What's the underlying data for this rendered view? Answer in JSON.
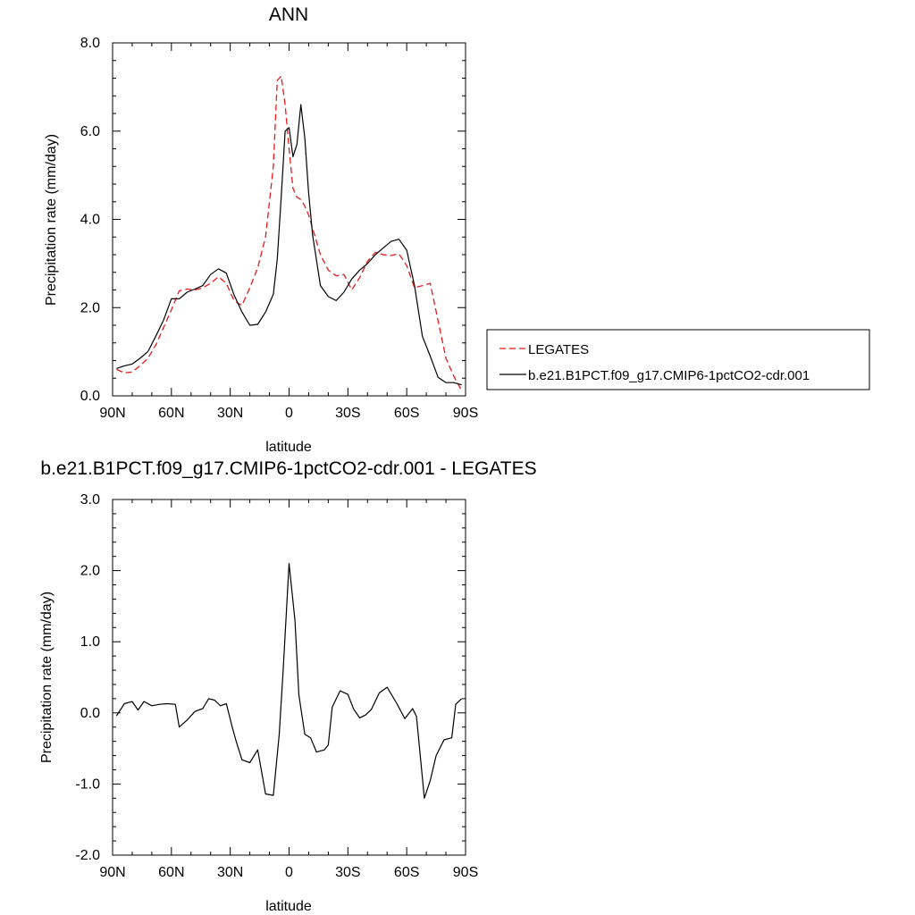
{
  "chart_data": [
    {
      "type": "line",
      "title": "ANN",
      "xlabel": "latitude",
      "ylabel": "Precipitation rate (mm/day)",
      "xlim": [
        90,
        -90
      ],
      "ylim": [
        0,
        8
      ],
      "xticks": [
        90,
        60,
        30,
        0,
        -30,
        -60,
        -90
      ],
      "xtick_labels": [
        "90N",
        "60N",
        "30N",
        "0",
        "30S",
        "60S",
        "90S"
      ],
      "yticks": [
        0,
        2,
        4,
        6,
        8
      ],
      "ytick_labels": [
        "0.0",
        "2.0",
        "4.0",
        "6.0",
        "8.0"
      ],
      "grid": false,
      "legend": {
        "placement": "right",
        "entries": [
          {
            "label": "LEGATES",
            "color": "#e41a1c",
            "dash": "dashed"
          },
          {
            "label": "b.e21.B1PCT.f09_g17.CMIP6-1pctCO2-cdr.001",
            "color": "#000000",
            "dash": "solid"
          }
        ]
      },
      "series": [
        {
          "name": "LEGATES",
          "color": "#e41a1c",
          "dash": "dashed",
          "x": [
            88,
            84,
            80,
            76,
            72,
            68,
            64,
            60,
            56,
            52,
            48,
            44,
            40,
            36,
            32,
            28,
            24,
            20,
            16,
            12,
            8,
            6,
            4,
            2,
            0,
            -2,
            -4,
            -6,
            -8,
            -10,
            -12,
            -16,
            -20,
            -24,
            -28,
            -32,
            -36,
            -40,
            -44,
            -48,
            -52,
            -56,
            -60,
            -64,
            -68,
            -72,
            -76,
            -80,
            -84,
            -88
          ],
          "y": [
            0.6,
            0.52,
            0.54,
            0.68,
            0.85,
            1.15,
            1.55,
            1.95,
            2.38,
            2.42,
            2.4,
            2.45,
            2.55,
            2.7,
            2.55,
            2.15,
            2.05,
            2.45,
            2.9,
            3.6,
            5.2,
            7.15,
            7.25,
            6.6,
            5.6,
            4.7,
            4.5,
            4.45,
            4.3,
            4.1,
            3.8,
            3.2,
            2.85,
            2.72,
            2.75,
            2.4,
            2.68,
            3.05,
            3.25,
            3.2,
            3.18,
            3.22,
            2.95,
            2.45,
            2.5,
            2.55,
            1.7,
            0.85,
            0.45,
            0.12
          ]
        },
        {
          "name": "b.e21.B1PCT.f09_g17.CMIP6-1pctCO2-cdr.001",
          "color": "#000000",
          "dash": "solid",
          "x": [
            88,
            84,
            80,
            76,
            72,
            68,
            64,
            60,
            56,
            52,
            48,
            44,
            40,
            36,
            32,
            28,
            24,
            20,
            16,
            12,
            8,
            6,
            4,
            2,
            0,
            -2,
            -4,
            -6,
            -8,
            -10,
            -12,
            -16,
            -20,
            -24,
            -28,
            -32,
            -36,
            -40,
            -44,
            -48,
            -52,
            -56,
            -60,
            -64,
            -68,
            -72,
            -76,
            -80,
            -84,
            -88
          ],
          "y": [
            0.62,
            0.68,
            0.72,
            0.85,
            1.0,
            1.35,
            1.72,
            2.2,
            2.2,
            2.35,
            2.42,
            2.5,
            2.75,
            2.88,
            2.78,
            2.28,
            1.9,
            1.6,
            1.62,
            1.9,
            2.3,
            3.1,
            4.5,
            6.0,
            6.08,
            5.42,
            5.7,
            6.6,
            5.85,
            4.6,
            3.65,
            2.5,
            2.25,
            2.16,
            2.35,
            2.65,
            2.85,
            3.0,
            3.2,
            3.35,
            3.5,
            3.55,
            3.3,
            2.5,
            1.35,
            0.9,
            0.42,
            0.3,
            0.3,
            0.25
          ]
        }
      ]
    },
    {
      "type": "line",
      "title": "b.e21.B1PCT.f09_g17.CMIP6-1pctCO2-cdr.001 - LEGATES",
      "xlabel": "latitude",
      "ylabel": "Precipitation rate (mm/day)",
      "xlim": [
        90,
        -90
      ],
      "ylim": [
        -2,
        3
      ],
      "xticks": [
        90,
        60,
        30,
        0,
        -30,
        -60,
        -90
      ],
      "xtick_labels": [
        "90N",
        "60N",
        "30N",
        "0",
        "30S",
        "60S",
        "90S"
      ],
      "yticks": [
        -2,
        -1,
        0,
        1,
        2,
        3
      ],
      "ytick_labels": [
        "-2.0",
        "-1.0",
        "0.0",
        "1.0",
        "2.0",
        "3.0"
      ],
      "grid": false,
      "series": [
        {
          "color": "#000000",
          "dash": "solid",
          "x": [
            88,
            84,
            80,
            77,
            74,
            70,
            66,
            62,
            58,
            56,
            52,
            48,
            44,
            41,
            38,
            35,
            32,
            29,
            27,
            24,
            20,
            16,
            12,
            8,
            5,
            3,
            0,
            -3,
            -5,
            -8,
            -11,
            -14,
            -18,
            -20,
            -22,
            -26,
            -30,
            -33,
            -36,
            -39,
            -42,
            -46,
            -50,
            -55,
            -59,
            -63,
            -65,
            -69,
            -72,
            -75,
            -79,
            -83,
            -85,
            -88
          ],
          "y": [
            -0.04,
            0.13,
            0.16,
            0.04,
            0.16,
            0.1,
            0.12,
            0.13,
            0.12,
            -0.2,
            -0.1,
            0.02,
            0.06,
            0.2,
            0.18,
            0.1,
            0.13,
            -0.2,
            -0.4,
            -0.66,
            -0.7,
            -0.52,
            -1.14,
            -1.16,
            -0.3,
            0.6,
            2.1,
            1.3,
            0.25,
            -0.3,
            -0.35,
            -0.55,
            -0.52,
            -0.45,
            0.08,
            0.31,
            0.26,
            0.05,
            -0.07,
            -0.03,
            0.05,
            0.28,
            0.36,
            0.13,
            -0.08,
            0.06,
            -0.05,
            -1.2,
            -0.95,
            -0.6,
            -0.38,
            -0.35,
            0.12,
            0.2
          ]
        }
      ]
    }
  ]
}
